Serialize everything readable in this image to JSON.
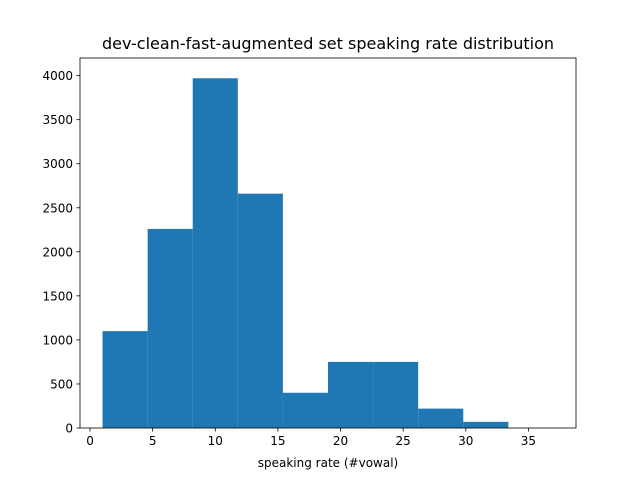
{
  "chart_data": {
    "type": "bar",
    "title": "dev-clean-fast-augmented set speaking rate distribution",
    "xlabel": "speaking rate (#vowal)",
    "ylabel": "",
    "bin_edges": [
      1.0,
      4.6,
      8.2,
      11.8,
      15.4,
      19.0,
      22.6,
      26.2,
      29.8,
      33.4,
      37.0
    ],
    "values": [
      1100,
      2260,
      3970,
      2660,
      400,
      750,
      750,
      220,
      70,
      0
    ],
    "xlim": [
      -0.8,
      38.8
    ],
    "ylim": [
      0,
      4200
    ],
    "xticks": [
      0,
      5,
      10,
      15,
      20,
      25,
      30,
      35
    ],
    "yticks": [
      0,
      500,
      1000,
      1500,
      2000,
      2500,
      3000,
      3500,
      4000
    ],
    "grid": false,
    "legend": "none",
    "bar_color": "#1f77b4"
  }
}
